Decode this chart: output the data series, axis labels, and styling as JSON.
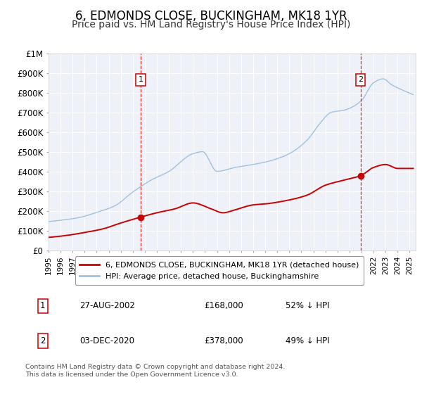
{
  "title": "6, EDMONDS CLOSE, BUCKINGHAM, MK18 1YR",
  "subtitle": "Price paid vs. HM Land Registry's House Price Index (HPI)",
  "title_fontsize": 12,
  "subtitle_fontsize": 10,
  "background_color": "#ffffff",
  "plot_bg_color": "#eef2f8",
  "grid_color": "#ffffff",
  "hpi_color": "#a0c0e0",
  "price_color": "#cc0000",
  "marker_color": "#cc0000",
  "vline_color": "#cc0000",
  "ylim": [
    0,
    1000000
  ],
  "yticks": [
    0,
    100000,
    200000,
    300000,
    400000,
    500000,
    600000,
    700000,
    800000,
    900000,
    1000000
  ],
  "ytick_labels": [
    "£0",
    "£100K",
    "£200K",
    "£300K",
    "£400K",
    "£500K",
    "£600K",
    "£700K",
    "£800K",
    "£900K",
    "£1M"
  ],
  "legend_labels": [
    "6, EDMONDS CLOSE, BUCKINGHAM, MK18 1YR (detached house)",
    "HPI: Average price, detached house, Buckinghamshire"
  ],
  "event1_x": 2002.65,
  "event1_label": "1",
  "event1_price": 168000,
  "event1_date": "27-AUG-2002",
  "event1_pct": "52% ↓ HPI",
  "event2_x": 2020.92,
  "event2_label": "2",
  "event2_price": 378000,
  "event2_date": "03-DEC-2020",
  "event2_pct": "49% ↓ HPI",
  "copyright_text": "Contains HM Land Registry data © Crown copyright and database right 2024.\nThis data is licensed under the Open Government Licence v3.0.",
  "xmin": 1995.0,
  "xmax": 2025.5
}
